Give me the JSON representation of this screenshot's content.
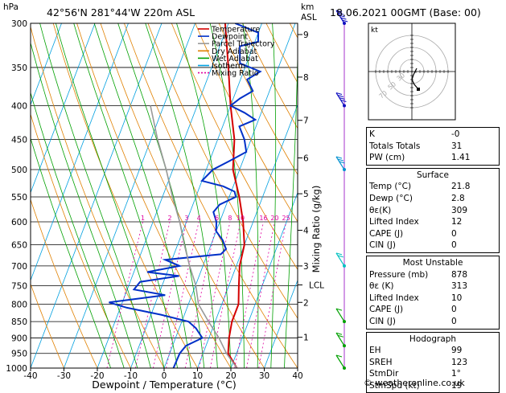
{
  "header": {
    "location": "42°56'N 281°44'W 220m ASL",
    "datetime": "18.06.2021 00GMT (Base: 00)",
    "y_unit_left": "hPa",
    "y_unit_right_km": "km",
    "y_unit_right_asl": "ASL",
    "mixing_ratio_label": "Mixing Ratio (g/kg)"
  },
  "chart_data": {
    "type": "line",
    "title": "42°56'N 281°44'W 220m ASL",
    "xlabel": "Dewpoint / Temperature (°C)",
    "ylabel": "hPa",
    "xlim": [
      -40,
      40
    ],
    "ylim": [
      1000,
      300
    ],
    "x_ticks": [
      -40,
      -30,
      -20,
      -10,
      0,
      10,
      20,
      30,
      40
    ],
    "pressure_ticks": [
      300,
      350,
      400,
      450,
      500,
      550,
      600,
      650,
      700,
      750,
      800,
      850,
      900,
      950,
      1000
    ],
    "altitude_ticks_km": [
      {
        "label": "9",
        "p": 312
      },
      {
        "label": "8",
        "p": 362
      },
      {
        "label": "7",
        "p": 421
      },
      {
        "label": "6",
        "p": 480
      },
      {
        "label": "5",
        "p": 544
      },
      {
        "label": "4",
        "p": 618
      },
      {
        "label": "3",
        "p": 700
      },
      {
        "label": "LCL",
        "p": 748
      },
      {
        "label": "2",
        "p": 795
      },
      {
        "label": "1",
        "p": 898
      }
    ],
    "mixing_ratio_labels": [
      "1",
      "2",
      "3",
      "4",
      "6",
      "8",
      "10",
      "16",
      "20",
      "25"
    ],
    "legend": [
      {
        "name": "Temperature",
        "color": "#d40000"
      },
      {
        "name": "Dewpoint",
        "color": "#0030c8"
      },
      {
        "name": "Parcel Trajectory",
        "color": "#999999"
      },
      {
        "name": "Dry Adiabat",
        "color": "#e08000"
      },
      {
        "name": "Wet Adiabat",
        "color": "#00a000"
      },
      {
        "name": "Isotherm",
        "color": "#00a0e0"
      },
      {
        "name": "Mixing Ratio",
        "color": "#e000a0"
      }
    ],
    "series": [
      {
        "name": "Temperature",
        "color": "#d40000",
        "points": [
          [
            21.8,
            1000
          ],
          [
            17.5,
            950
          ],
          [
            16,
            900
          ],
          [
            15,
            850
          ],
          [
            15,
            800
          ],
          [
            13,
            750
          ],
          [
            11,
            700
          ],
          [
            10,
            650
          ],
          [
            7,
            600
          ],
          [
            3,
            550
          ],
          [
            -2,
            500
          ],
          [
            -5,
            450
          ],
          [
            -10,
            400
          ],
          [
            -15,
            350
          ],
          [
            -21,
            300
          ]
        ]
      },
      {
        "name": "Dewpoint",
        "color": "#0030c8",
        "points": [
          [
            2.8,
            1000
          ],
          [
            3,
            950
          ],
          [
            4,
            925
          ],
          [
            8,
            900
          ],
          [
            5,
            870
          ],
          [
            2,
            850
          ],
          [
            -7,
            830
          ],
          [
            -18,
            810
          ],
          [
            -24,
            795
          ],
          [
            -8,
            775
          ],
          [
            -18,
            760
          ],
          [
            -17,
            740
          ],
          [
            -6,
            725
          ],
          [
            -16,
            715
          ],
          [
            -7,
            700
          ],
          [
            -12,
            685
          ],
          [
            4,
            672
          ],
          [
            5,
            660
          ],
          [
            3,
            640
          ],
          [
            0,
            620
          ],
          [
            -1,
            600
          ],
          [
            -3,
            580
          ],
          [
            -2,
            565
          ],
          [
            2,
            550
          ],
          [
            1,
            540
          ],
          [
            -3,
            530
          ],
          [
            -10,
            520
          ],
          [
            -8,
            500
          ],
          [
            -4,
            485
          ],
          [
            0,
            470
          ],
          [
            -2,
            450
          ],
          [
            -5,
            430
          ],
          [
            -1,
            420
          ],
          [
            -5,
            410
          ],
          [
            -10,
            400
          ],
          [
            -8,
            390
          ],
          [
            -5,
            380
          ],
          [
            -8,
            365
          ],
          [
            -5,
            355
          ],
          [
            -12,
            345
          ],
          [
            -14,
            325
          ],
          [
            -9,
            320
          ],
          [
            -10,
            310
          ],
          [
            -18,
            300
          ]
        ]
      },
      {
        "name": "Parcel Trajectory",
        "color": "#999999",
        "points": [
          [
            21.8,
            1000
          ],
          [
            17,
            950
          ],
          [
            13,
            900
          ],
          [
            8,
            850
          ],
          [
            3,
            800
          ],
          [
            0,
            748
          ],
          [
            -4,
            700
          ],
          [
            -8,
            650
          ],
          [
            -12,
            600
          ],
          [
            -17,
            550
          ],
          [
            -22,
            500
          ],
          [
            -28,
            450
          ],
          [
            -34,
            400
          ]
        ]
      }
    ],
    "wind_barbs": [
      {
        "p": 1000,
        "speed_kt": 10
      },
      {
        "p": 925,
        "speed_kt": 15
      },
      {
        "p": 850,
        "speed_kt": 10
      },
      {
        "p": 700,
        "speed_kt": 15
      },
      {
        "p": 500,
        "speed_kt": 25
      },
      {
        "p": 400,
        "speed_kt": 35
      },
      {
        "p": 300,
        "speed_kt": 45
      }
    ]
  },
  "hodograph": {
    "label": "kt",
    "ring_labels": [
      "70",
      "50",
      "30"
    ]
  },
  "indices": [
    {
      "label": "K",
      "value": "-0"
    },
    {
      "label": "Totals Totals",
      "value": "31"
    },
    {
      "label": "PW (cm)",
      "value": "1.41"
    }
  ],
  "surface": {
    "title": "Surface",
    "rows": [
      {
        "label": "Temp (°C)",
        "value": "21.8"
      },
      {
        "label": "Dewp (°C)",
        "value": "2.8"
      },
      {
        "label": "θε(K)",
        "value": "309"
      },
      {
        "label": "Lifted Index",
        "value": "12"
      },
      {
        "label": "CAPE (J)",
        "value": "0"
      },
      {
        "label": "CIN (J)",
        "value": "0"
      }
    ]
  },
  "most_unstable": {
    "title": "Most Unstable",
    "rows": [
      {
        "label": "Pressure (mb)",
        "value": "878"
      },
      {
        "label": "θε (K)",
        "value": "313"
      },
      {
        "label": "Lifted Index",
        "value": "10"
      },
      {
        "label": "CAPE (J)",
        "value": "0"
      },
      {
        "label": "CIN (J)",
        "value": "0"
      }
    ]
  },
  "hodograph_table": {
    "title": "Hodograph",
    "rows": [
      {
        "label": "EH",
        "value": "99"
      },
      {
        "label": "SREH",
        "value": "123"
      },
      {
        "label": "StmDir",
        "value": "1°"
      },
      {
        "label": "StmSpd (kt)",
        "value": "19"
      }
    ]
  },
  "footer": "© weatheronline.co.uk"
}
